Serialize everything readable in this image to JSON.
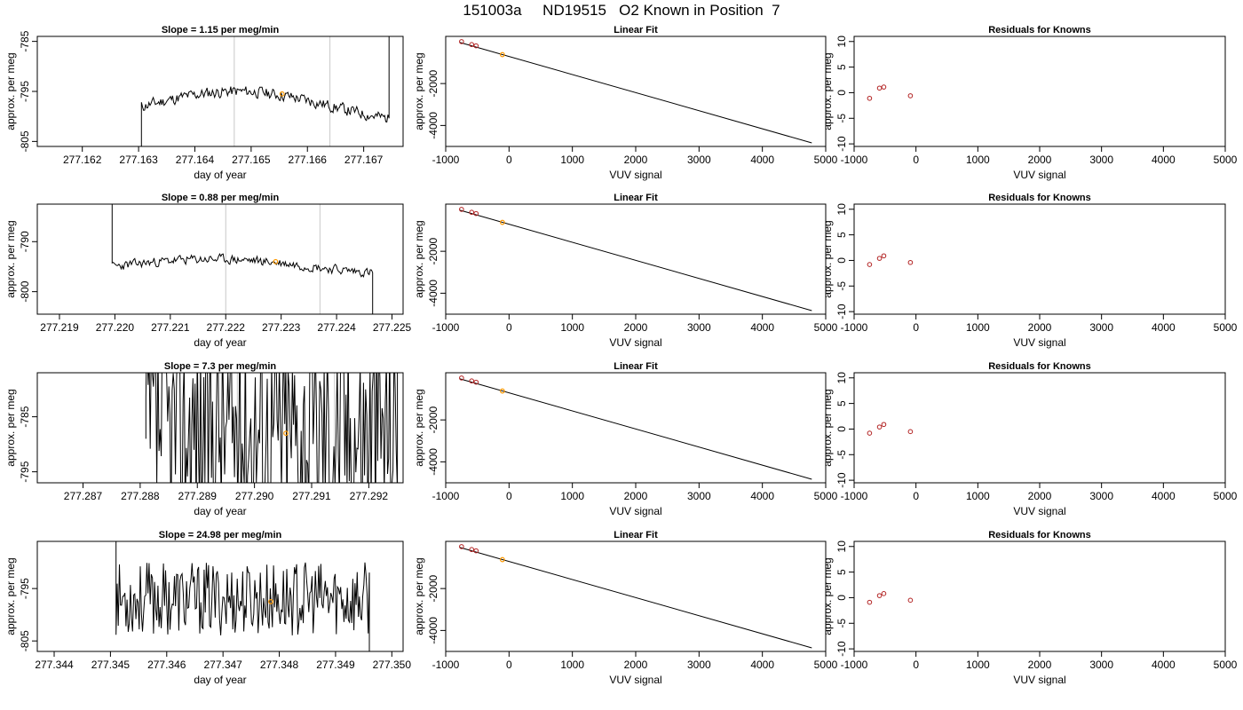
{
  "title": "151003a     ND19515   O2 Known in Position  7",
  "colors": {
    "line": "#000000",
    "grid": "#c8c8c8",
    "point": "#b22222",
    "highlight": "#ff9900"
  },
  "chart_data": [
    {
      "row": 0,
      "type": "line",
      "title": "Slope =  1.15  per meg/min",
      "xlabel": "day of year",
      "ylabel": "approx. per meg",
      "xlim": [
        277.1612,
        277.1677
      ],
      "ylim": [
        -806,
        -784
      ],
      "xticks": [
        277.162,
        277.163,
        277.164,
        277.165,
        277.166,
        277.167
      ],
      "xtick_labels": [
        "277.162",
        "277.163",
        "277.164",
        "277.165",
        "277.166",
        "277.167"
      ],
      "yticks": [
        -785,
        -795,
        -805
      ],
      "ytick_labels": [
        "-785",
        "-795",
        "-805"
      ],
      "vlines": [
        277.1647,
        277.1664
      ],
      "start": 277.16305,
      "end": 277.16745,
      "base": -798,
      "amp": 3,
      "noise": 1.6,
      "seed": 11,
      "edge_start": -808,
      "edge_end": -780,
      "highlight": {
        "x": 277.16555,
        "y": -795.5
      }
    },
    {
      "row": 0,
      "type": "scatter",
      "title": "Linear Fit",
      "xlabel": "VUV signal",
      "ylabel": "approx. per meg",
      "xlim": [
        -1000,
        5000
      ],
      "ylim": [
        -5000,
        250
      ],
      "xticks": [
        -1000,
        0,
        1000,
        2000,
        3000,
        4000,
        5000
      ],
      "xtick_labels": [
        "-1000",
        "0",
        "1000",
        "2000",
        "3000",
        "4000",
        "5000"
      ],
      "yticks": [
        -2000,
        -4000
      ],
      "ytick_labels": [
        "-2000",
        "-4000"
      ],
      "fit_line": [
        [
          -780,
          -35
        ],
        [
          4780,
          -4830
        ]
      ],
      "points": [
        [
          -750,
          0
        ],
        [
          -590,
          -140
        ],
        [
          -520,
          -200
        ]
      ],
      "highlight": {
        "x": -105,
        "y": -620
      }
    },
    {
      "row": 0,
      "type": "scatter",
      "title": "Residuals for Knowns",
      "xlabel": "VUV signal",
      "ylabel": "approx. per meg",
      "xlim": [
        -1000,
        5000
      ],
      "ylim": [
        -10.5,
        11
      ],
      "xticks": [
        -1000,
        0,
        1000,
        2000,
        3000,
        4000,
        5000
      ],
      "xtick_labels": [
        "-1000",
        "0",
        "1000",
        "2000",
        "3000",
        "4000",
        "5000"
      ],
      "yticks": [
        10,
        5,
        0,
        -5,
        -10
      ],
      "ytick_labels": [
        "10",
        "5",
        "0",
        "-5",
        "-10"
      ],
      "points": [
        [
          -750,
          -1.1
        ],
        [
          -590,
          0.9
        ],
        [
          -520,
          1.1
        ],
        [
          -90,
          -0.6
        ]
      ]
    },
    {
      "row": 1,
      "type": "line",
      "title": "Slope =  0.88  per meg/min",
      "xlabel": "day of year",
      "ylabel": "approx. per meg",
      "xlim": [
        277.2186,
        277.2252
      ],
      "ylim": [
        -804.5,
        -782.5
      ],
      "xticks": [
        277.219,
        277.22,
        277.221,
        277.222,
        277.223,
        277.224,
        277.225
      ],
      "xtick_labels": [
        "277.219",
        "277.220",
        "277.221",
        "277.222",
        "277.223",
        "277.224",
        "277.225"
      ],
      "yticks": [
        -790,
        -800
      ],
      "ytick_labels": [
        "-790",
        "-800"
      ],
      "vlines": [
        277.222,
        277.2237
      ],
      "start": 277.21995,
      "end": 277.22465,
      "base": -795,
      "amp": 1.5,
      "noise": 1.3,
      "seed": 23,
      "edge_start": -778,
      "edge_end": -808,
      "highlight": {
        "x": 277.2229,
        "y": -794
      }
    },
    {
      "row": 1,
      "type": "scatter",
      "title": "Linear Fit",
      "xlabel": "VUV signal",
      "ylabel": "approx. per meg",
      "xlim": [
        -1000,
        5000
      ],
      "ylim": [
        -5000,
        250
      ],
      "xticks": [
        -1000,
        0,
        1000,
        2000,
        3000,
        4000,
        5000
      ],
      "xtick_labels": [
        "-1000",
        "0",
        "1000",
        "2000",
        "3000",
        "4000",
        "5000"
      ],
      "yticks": [
        -2000,
        -4000
      ],
      "ytick_labels": [
        "-2000",
        "-4000"
      ],
      "fit_line": [
        [
          -780,
          -35
        ],
        [
          4780,
          -4830
        ]
      ],
      "points": [
        [
          -750,
          0
        ],
        [
          -590,
          -140
        ],
        [
          -520,
          -200
        ]
      ],
      "highlight": {
        "x": -105,
        "y": -620
      }
    },
    {
      "row": 1,
      "type": "scatter",
      "title": "Residuals for Knowns",
      "xlabel": "VUV signal",
      "ylabel": "approx. per meg",
      "xlim": [
        -1000,
        5000
      ],
      "ylim": [
        -10.5,
        11
      ],
      "xticks": [
        -1000,
        0,
        1000,
        2000,
        3000,
        4000,
        5000
      ],
      "xtick_labels": [
        "-1000",
        "0",
        "1000",
        "2000",
        "3000",
        "4000",
        "5000"
      ],
      "yticks": [
        10,
        5,
        0,
        -5,
        -10
      ],
      "ytick_labels": [
        "10",
        "5",
        "0",
        "-5",
        "-10"
      ],
      "points": [
        [
          -750,
          -0.8
        ],
        [
          -590,
          0.4
        ],
        [
          -520,
          0.9
        ],
        [
          -90,
          -0.4
        ]
      ]
    },
    {
      "row": 2,
      "type": "line",
      "title": "Slope =  7.3  per meg/min",
      "xlabel": "day of year",
      "ylabel": "approx. per meg",
      "xlim": [
        277.2862,
        277.2926
      ],
      "ylim": [
        -797,
        -777
      ],
      "xticks": [
        277.287,
        277.288,
        277.289,
        277.29,
        277.291,
        277.292
      ],
      "xtick_labels": [
        "277.287",
        "277.288",
        "277.289",
        "277.290",
        "277.291",
        "277.292"
      ],
      "yticks": [
        -785,
        -795
      ],
      "ytick_labels": [
        "-785",
        "-795"
      ],
      "vlines": [
        277.2897,
        277.2914
      ],
      "start": 277.2881,
      "end": 277.2925,
      "base": -787,
      "amp": 0,
      "noise": 40,
      "seed": 37,
      "edge_start": -789,
      "edge_end": -770,
      "highlight": {
        "x": 277.29055,
        "y": -788
      }
    },
    {
      "row": 2,
      "type": "scatter",
      "title": "Linear Fit",
      "xlabel": "VUV signal",
      "ylabel": "approx. per meg",
      "xlim": [
        -1000,
        5000
      ],
      "ylim": [
        -5000,
        250
      ],
      "xticks": [
        -1000,
        0,
        1000,
        2000,
        3000,
        4000,
        5000
      ],
      "xtick_labels": [
        "-1000",
        "0",
        "1000",
        "2000",
        "3000",
        "4000",
        "5000"
      ],
      "yticks": [
        -2000,
        -4000
      ],
      "ytick_labels": [
        "-2000",
        "-4000"
      ],
      "fit_line": [
        [
          -780,
          -35
        ],
        [
          4780,
          -4830
        ]
      ],
      "points": [
        [
          -750,
          0
        ],
        [
          -590,
          -140
        ],
        [
          -520,
          -200
        ]
      ],
      "highlight": {
        "x": -105,
        "y": -620
      }
    },
    {
      "row": 2,
      "type": "scatter",
      "title": "Residuals for Knowns",
      "xlabel": "VUV signal",
      "ylabel": "approx. per meg",
      "xlim": [
        -1000,
        5000
      ],
      "ylim": [
        -10.5,
        11
      ],
      "xticks": [
        -1000,
        0,
        1000,
        2000,
        3000,
        4000,
        5000
      ],
      "xtick_labels": [
        "-1000",
        "0",
        "1000",
        "2000",
        "3000",
        "4000",
        "5000"
      ],
      "yticks": [
        10,
        5,
        0,
        -5,
        -10
      ],
      "ytick_labels": [
        "10",
        "5",
        "0",
        "-5",
        "-10"
      ],
      "points": [
        [
          -750,
          -0.8
        ],
        [
          -590,
          0.4
        ],
        [
          -520,
          0.9
        ],
        [
          -90,
          -0.5
        ]
      ]
    },
    {
      "row": 3,
      "type": "line",
      "title": "Slope =  24.98  per meg/min",
      "xlabel": "day of year",
      "ylabel": "approx. per meg",
      "xlim": [
        277.3437,
        277.3502
      ],
      "ylim": [
        -807,
        -786
      ],
      "xticks": [
        277.344,
        277.345,
        277.346,
        277.347,
        277.348,
        277.349,
        277.35
      ],
      "xtick_labels": [
        "277.344",
        "277.345",
        "277.346",
        "277.347",
        "277.348",
        "277.349",
        "277.350"
      ],
      "yticks": [
        -795,
        -805
      ],
      "ytick_labels": [
        "-795",
        "-805"
      ],
      "vlines": [],
      "start": 277.3451,
      "end": 277.3496,
      "base": -797,
      "amp": 0,
      "noise": 14,
      "seed": 53,
      "edge_start": -780,
      "edge_end": -809,
      "highlight": {
        "x": 277.34785,
        "y": -797.5
      }
    },
    {
      "row": 3,
      "type": "scatter",
      "title": "Linear Fit",
      "xlabel": "VUV signal",
      "ylabel": "approx. per meg",
      "xlim": [
        -1000,
        5000
      ],
      "ylim": [
        -5000,
        250
      ],
      "xticks": [
        -1000,
        0,
        1000,
        2000,
        3000,
        4000,
        5000
      ],
      "xtick_labels": [
        "-1000",
        "0",
        "1000",
        "2000",
        "3000",
        "4000",
        "5000"
      ],
      "yticks": [
        -2000,
        -4000
      ],
      "ytick_labels": [
        "-2000",
        "-4000"
      ],
      "fit_line": [
        [
          -780,
          -35
        ],
        [
          4780,
          -4830
        ]
      ],
      "points": [
        [
          -750,
          0
        ],
        [
          -590,
          -140
        ],
        [
          -520,
          -200
        ]
      ],
      "highlight": {
        "x": -105,
        "y": -620
      }
    },
    {
      "row": 3,
      "type": "scatter",
      "title": "Residuals for Knowns",
      "xlabel": "VUV signal",
      "ylabel": "approx. per meg",
      "xlim": [
        -1000,
        5000
      ],
      "ylim": [
        -10.5,
        11
      ],
      "xticks": [
        -1000,
        0,
        1000,
        2000,
        3000,
        4000,
        5000
      ],
      "xtick_labels": [
        "-1000",
        "0",
        "1000",
        "2000",
        "3000",
        "4000",
        "5000"
      ],
      "yticks": [
        10,
        5,
        0,
        -5,
        -10
      ],
      "ytick_labels": [
        "10",
        "5",
        "0",
        "-5",
        "-10"
      ],
      "points": [
        [
          -750,
          -0.9
        ],
        [
          -590,
          0.4
        ],
        [
          -520,
          0.8
        ],
        [
          -90,
          -0.5
        ]
      ]
    }
  ]
}
